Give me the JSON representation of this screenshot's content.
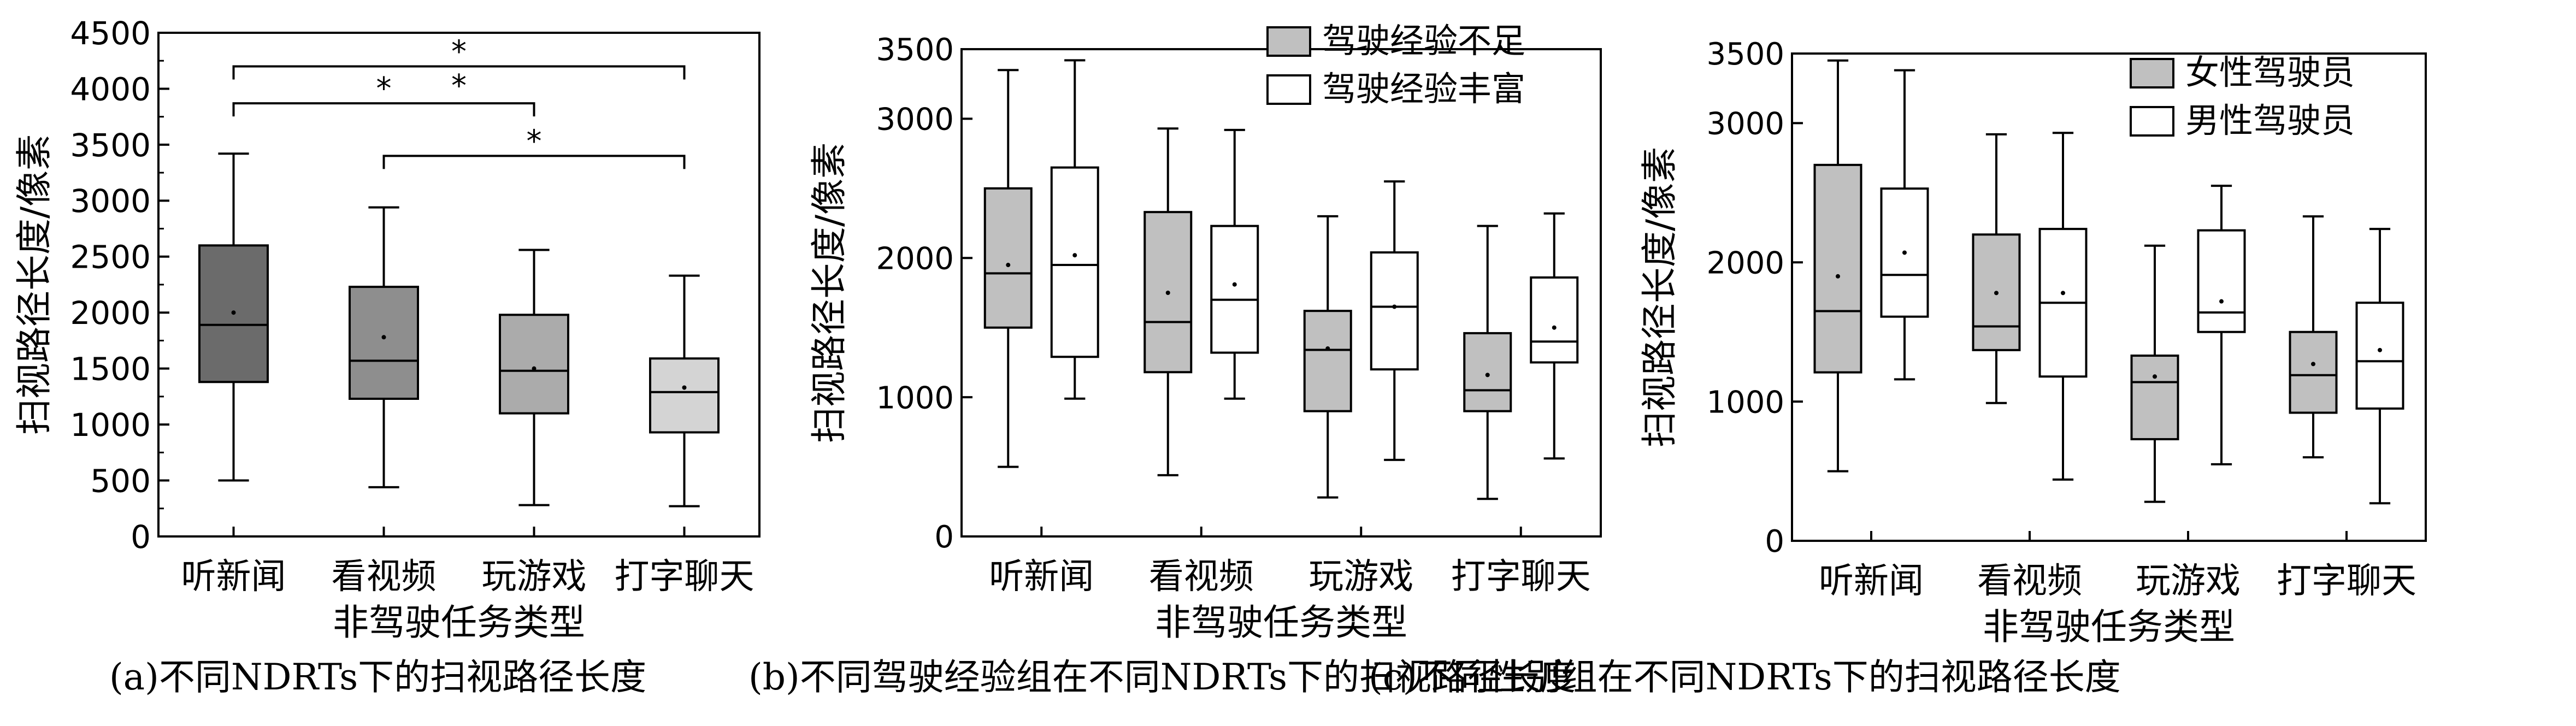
{
  "chart_data": [
    {
      "type": "box",
      "panel_caption": "(a)不同NDRTs下的扫视路径长度",
      "xlabel": "非驾驶任务类型",
      "ylabel": "扫视路径长度/像素",
      "categories": [
        "听新闻",
        "看视频",
        "玩游戏",
        "打字聊天"
      ],
      "ylim": [
        0,
        4500
      ],
      "yticks": [
        0,
        500,
        1000,
        1500,
        2000,
        2500,
        3000,
        3500,
        4000,
        4500
      ],
      "series": [
        {
          "fill": "#6b6b6b",
          "boxes": [
            {
              "min": 500,
              "q1": 1380,
              "median": 1890,
              "q3": 2600,
              "max": 3420,
              "mean": 2000
            },
            {
              "min": 440,
              "q1": 1230,
              "median": 1570,
              "q3": 2230,
              "max": 2940,
              "mean": 1780
            },
            {
              "min": 280,
              "q1": 1100,
              "median": 1480,
              "q3": 1980,
              "max": 2560,
              "mean": 1500
            },
            {
              "min": 270,
              "q1": 930,
              "median": 1290,
              "q3": 1590,
              "max": 2330,
              "mean": 1330
            }
          ]
        }
      ],
      "box_fills": [
        "#6b6b6b",
        "#8e8e8e",
        "#ababab",
        "#d4d4d4"
      ],
      "significance": [
        {
          "from": 0,
          "to": 3,
          "y": 4200,
          "label": "*"
        },
        {
          "from": 0,
          "to": 2,
          "y": 3870,
          "label": "*"
        },
        {
          "from": 1,
          "to": 3,
          "y": 3400,
          "label": "*"
        }
      ],
      "extra_star": {
        "between": [
          0,
          3
        ],
        "y": 4130,
        "label": "*"
      }
    },
    {
      "type": "box",
      "panel_caption": "(b)不同驾驶经验组在不同NDRTs下的扫视路径长度",
      "xlabel": "非驾驶任务类型",
      "ylabel": "扫视路径长度/像素",
      "categories": [
        "听新闻",
        "看视频",
        "玩游戏",
        "打字聊天"
      ],
      "ylim": [
        0,
        3500
      ],
      "yticks": [
        0,
        1000,
        2000,
        3000
      ],
      "extra_ytick": 3500,
      "legend_position": "top-right",
      "series": [
        {
          "name": "驾驶经验不足",
          "fill": "#c0c0c0",
          "boxes": [
            {
              "min": 500,
              "q1": 1500,
              "median": 1890,
              "q3": 2500,
              "max": 3350,
              "mean": 1950
            },
            {
              "min": 440,
              "q1": 1180,
              "median": 1540,
              "q3": 2330,
              "max": 2930,
              "mean": 1750
            },
            {
              "min": 280,
              "q1": 900,
              "median": 1340,
              "q3": 1620,
              "max": 2300,
              "mean": 1350
            },
            {
              "min": 270,
              "q1": 900,
              "median": 1050,
              "q3": 1460,
              "max": 2230,
              "mean": 1160
            }
          ]
        },
        {
          "name": "驾驶经验丰富",
          "fill": "#ffffff",
          "boxes": [
            {
              "min": 990,
              "q1": 1290,
              "median": 1950,
              "q3": 2650,
              "max": 3420,
              "mean": 2020
            },
            {
              "min": 990,
              "q1": 1320,
              "median": 1700,
              "q3": 2230,
              "max": 2920,
              "mean": 1810
            },
            {
              "min": 550,
              "q1": 1200,
              "median": 1650,
              "q3": 2040,
              "max": 2550,
              "mean": 1650
            },
            {
              "min": 560,
              "q1": 1250,
              "median": 1400,
              "q3": 1860,
              "max": 2320,
              "mean": 1500
            }
          ]
        }
      ]
    },
    {
      "type": "box",
      "panel_caption": "(c)不同性别组在不同NDRTs下的扫视路径长度",
      "xlabel": "非驾驶任务类型",
      "ylabel": "扫视路径长度/像素",
      "categories": [
        "听新闻",
        "看视频",
        "玩游戏",
        "打字聊天"
      ],
      "ylim": [
        0,
        3500
      ],
      "yticks": [
        0,
        1000,
        2000,
        3000
      ],
      "extra_ytick": 3500,
      "legend_position": "top-right",
      "series": [
        {
          "name": "女性驾驶员",
          "fill": "#c0c0c0",
          "boxes": [
            {
              "min": 500,
              "q1": 1210,
              "median": 1650,
              "q3": 2700,
              "max": 3450,
              "mean": 1900
            },
            {
              "min": 990,
              "q1": 1370,
              "median": 1540,
              "q3": 2200,
              "max": 2920,
              "mean": 1780
            },
            {
              "min": 280,
              "q1": 730,
              "median": 1140,
              "q3": 1330,
              "max": 2120,
              "mean": 1180
            },
            {
              "min": 600,
              "q1": 920,
              "median": 1190,
              "q3": 1500,
              "max": 2330,
              "mean": 1270
            }
          ]
        },
        {
          "name": "男性驾驶员",
          "fill": "#ffffff",
          "boxes": [
            {
              "min": 1160,
              "q1": 1610,
              "median": 1910,
              "q3": 2530,
              "max": 3380,
              "mean": 2070
            },
            {
              "min": 440,
              "q1": 1180,
              "median": 1710,
              "q3": 2240,
              "max": 2930,
              "mean": 1780
            },
            {
              "min": 550,
              "q1": 1500,
              "median": 1640,
              "q3": 2230,
              "max": 2550,
              "mean": 1720
            },
            {
              "min": 270,
              "q1": 950,
              "median": 1290,
              "q3": 1710,
              "max": 2240,
              "mean": 1370
            }
          ]
        }
      ]
    }
  ]
}
